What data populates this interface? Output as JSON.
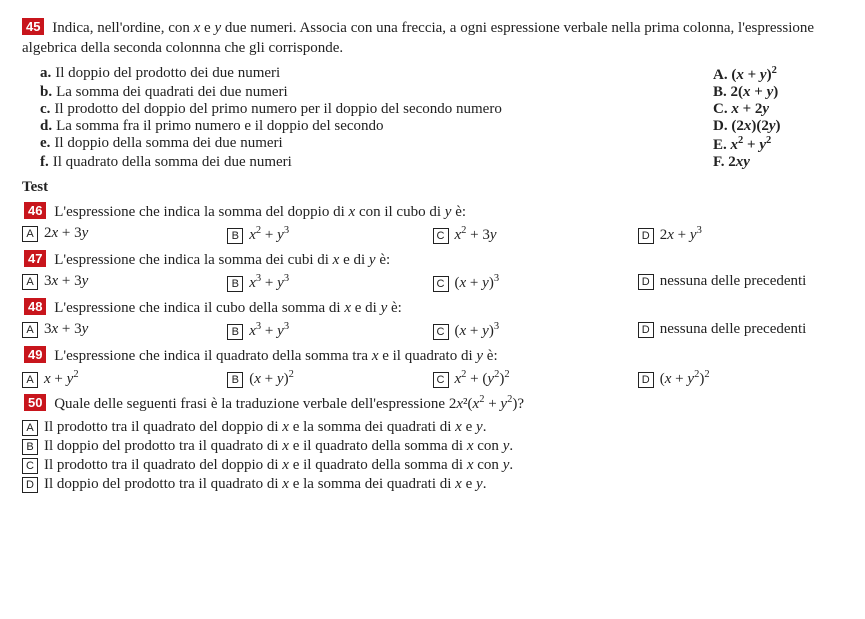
{
  "q45": {
    "num": "45",
    "intro_part1": "Indica, nell'ordine, con ",
    "intro_var1": "x",
    "intro_part2": " e ",
    "intro_var2": "y",
    "intro_part3": " due numeri. Associa con una freccia, a ogni espressione verbale nella prima colonna, l'espressione algebrica della seconda colonnna che gli corrisponde.",
    "rows": [
      {
        "l_label": "a.",
        "l_text": "Il doppio del prodotto dei due numeri",
        "r_label": "A.",
        "r_html": "(x + y)²"
      },
      {
        "l_label": "b.",
        "l_text": "La somma dei quadrati dei due numeri",
        "r_label": "B.",
        "r_html": "2(x + y)"
      },
      {
        "l_label": "c.",
        "l_text": "Il prodotto del doppio del primo numero per il doppio del secondo numero",
        "r_label": "C.",
        "r_html": "x + 2y"
      },
      {
        "l_label": "d.",
        "l_text": "La somma fra il primo numero e il doppio del secondo",
        "r_label": "D.",
        "r_html": "(2x)(2y)"
      },
      {
        "l_label": "e.",
        "l_text": "Il doppio della somma dei due numeri",
        "r_label": "E.",
        "r_html": "x² + y²"
      },
      {
        "l_label": "f.",
        "l_text": "Il quadrato della somma dei due numeri",
        "r_label": "F.",
        "r_html": "2xy"
      }
    ]
  },
  "test_label": "Test",
  "questions": [
    {
      "num": "46",
      "prompt_pre": "L'espressione che indica la somma del doppio di ",
      "prompt_mid1": "x",
      "prompt_mid2": " con il cubo di ",
      "prompt_mid3": "y",
      "prompt_post": " è:",
      "layout": "row",
      "opts": [
        {
          "label": "A",
          "html": "2x + 3y"
        },
        {
          "label": "B",
          "html": "x² + y³"
        },
        {
          "label": "C",
          "html": "x² + 3y"
        },
        {
          "label": "D",
          "html": "2x + y³"
        }
      ]
    },
    {
      "num": "47",
      "prompt_pre": "L'espressione che indica la somma dei cubi di ",
      "prompt_mid1": "x",
      "prompt_mid2": " e di ",
      "prompt_mid3": "y",
      "prompt_post": " è:",
      "layout": "row",
      "opts": [
        {
          "label": "A",
          "html": "3x + 3y"
        },
        {
          "label": "B",
          "html": "x³ + y³"
        },
        {
          "label": "C",
          "html": "(x + y)³"
        },
        {
          "label": "D",
          "html": "nessuna delle precedenti"
        }
      ]
    },
    {
      "num": "48",
      "prompt_pre": "L'espressione che indica il cubo della somma di ",
      "prompt_mid1": "x",
      "prompt_mid2": " e di ",
      "prompt_mid3": "y",
      "prompt_post": " è:",
      "layout": "row",
      "opts": [
        {
          "label": "A",
          "html": "3x + 3y"
        },
        {
          "label": "B",
          "html": "x³ + y³"
        },
        {
          "label": "C",
          "html": "(x + y)³"
        },
        {
          "label": "D",
          "html": "nessuna delle precedenti"
        }
      ]
    },
    {
      "num": "49",
      "prompt_pre": "L'espressione che indica il quadrato della somma tra ",
      "prompt_mid1": "x",
      "prompt_mid2": " e il quadrato di ",
      "prompt_mid3": "y",
      "prompt_post": " è:",
      "layout": "row",
      "opts": [
        {
          "label": "A",
          "html": "x + y²"
        },
        {
          "label": "B",
          "html": "(x + y)²"
        },
        {
          "label": "C",
          "html": "x² + (y²)²"
        },
        {
          "label": "D",
          "html": "(x + y²)²"
        }
      ]
    },
    {
      "num": "50",
      "prompt_pre": "Quale delle seguenti frasi è la traduzione verbale dell'espressione 2",
      "prompt_mid1": "x",
      "prompt_mid2": "²(",
      "prompt_mid3": "x² + y²",
      "prompt_post": ")?",
      "layout": "col",
      "opts": [
        {
          "label": "A",
          "html": "Il prodotto tra il quadrato del doppio di x e la somma dei quadrati di x e y."
        },
        {
          "label": "B",
          "html": "Il doppio del prodotto tra il quadrato di x e il quadrato della somma di x con y."
        },
        {
          "label": "C",
          "html": "Il prodotto tra il quadrato del doppio di x e il quadrato della somma di x con y."
        },
        {
          "label": "D",
          "html": "Il doppio del prodotto tra il quadrato di x e la somma dei quadrati di x e y."
        }
      ]
    }
  ]
}
